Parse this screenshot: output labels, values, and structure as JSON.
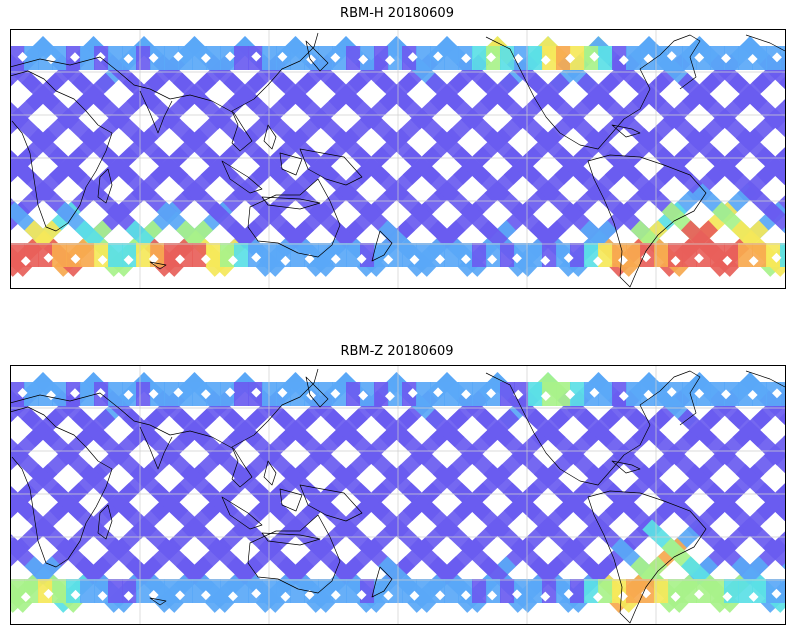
{
  "maps": [
    {
      "title": "RBM-H 20180609",
      "variant": "H"
    },
    {
      "title": "RBM-Z 20180609",
      "variant": "Z"
    }
  ],
  "colors": {
    "frame": "#000000",
    "coast": "#000000",
    "grid": "#cfcfcf",
    "track_low": "#6a5cf0",
    "track_mid": "#5aa8f7",
    "track_cyan": "#5be0e6",
    "track_green": "#a8f28a",
    "track_yellow": "#f5e85a",
    "track_orange": "#f7a94f",
    "track_red": "#e8605a"
  }
}
